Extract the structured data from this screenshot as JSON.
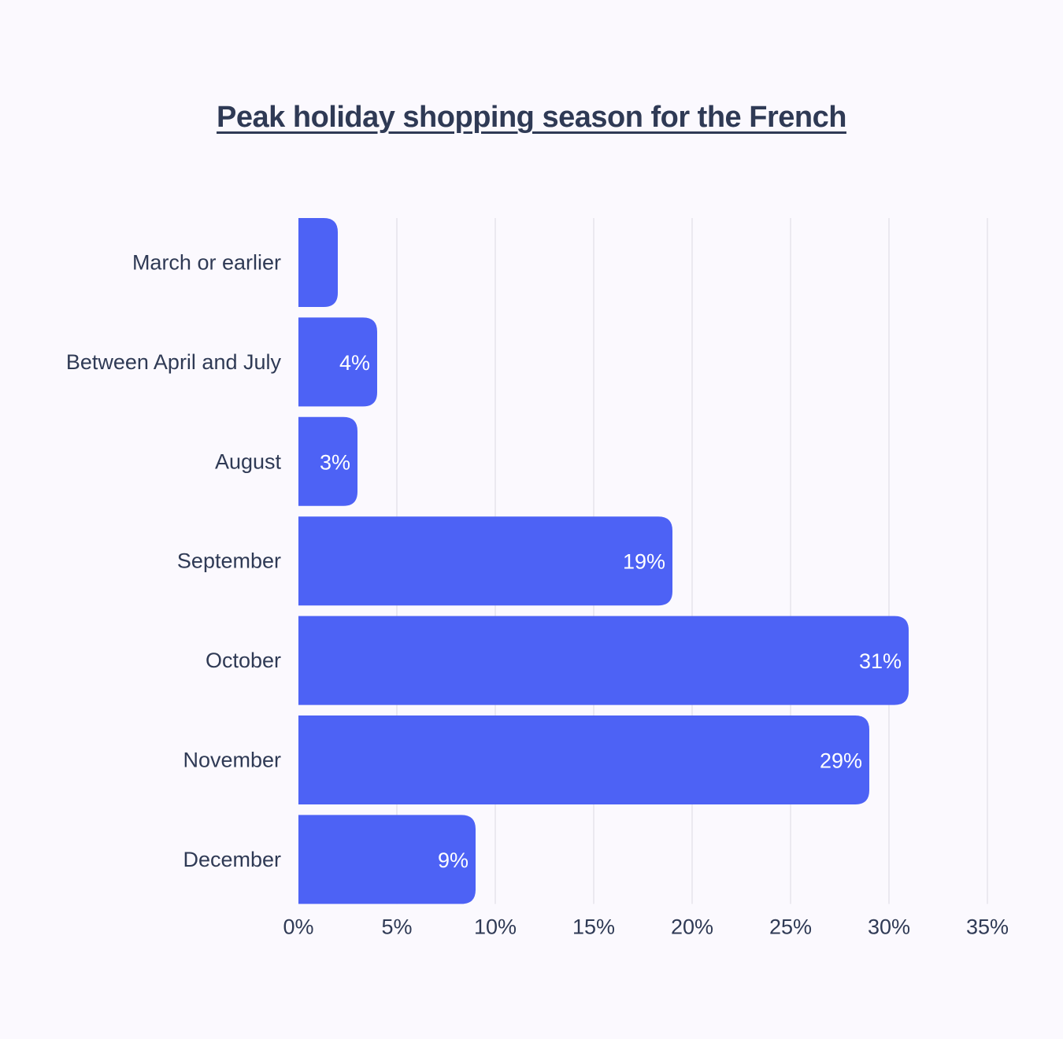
{
  "chart_data": {
    "type": "bar",
    "orientation": "horizontal",
    "title": "Peak holiday shopping season for the French",
    "categories": [
      "March or earlier",
      "Between April and July",
      "August",
      "September",
      "October",
      "November",
      "December"
    ],
    "values": [
      2,
      4,
      3,
      19,
      31,
      29,
      9
    ],
    "value_labels": [
      "",
      "4%",
      "3%",
      "19%",
      "31%",
      "29%",
      "9%"
    ],
    "xlim": [
      0,
      35
    ],
    "x_ticks": [
      "0%",
      "5%",
      "10%",
      "15%",
      "20%",
      "25%",
      "30%",
      "35%"
    ],
    "xlabel": "",
    "ylabel": "",
    "grid": true,
    "legend": "none",
    "bar_color": "#4d62f5"
  }
}
